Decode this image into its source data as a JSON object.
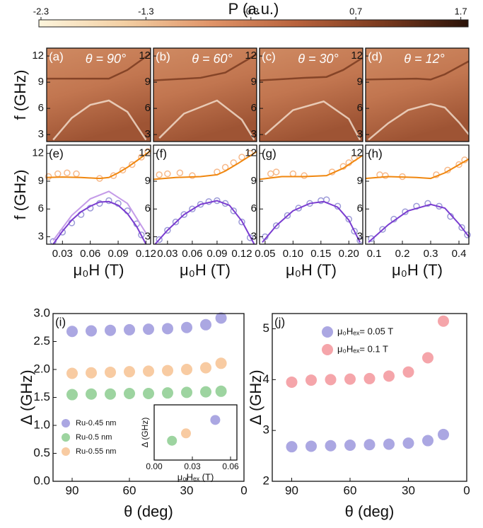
{
  "chart_data": [
    {
      "type": "colorbar",
      "title": "P (a.u.)",
      "clim": [
        -2.32,
        1.77
      ],
      "ticks": [
        -2.3,
        -1.3,
        -0.3,
        0.7,
        1.7
      ],
      "colors": [
        "#fdf5dc",
        "#f3cfa3",
        "#e09468",
        "#b8623c",
        "#7a3a1e",
        "#2a1208"
      ]
    },
    {
      "type": "heatmap",
      "label": "(a)",
      "annotation": "θ = 90°",
      "ylabel": "f (GHz)",
      "xlim": [
        0.013,
        0.125
      ],
      "ylim": [
        2.2,
        12.9
      ],
      "yticks": [
        3,
        6,
        9,
        12
      ],
      "grid": false,
      "series": [
        {
          "color": "#fff3e6",
          "x": [
            0.02,
            0.04,
            0.06,
            0.08,
            0.1,
            0.12
          ],
          "values": [
            2.4,
            4.9,
            6.4,
            6.9,
            5.6,
            2.4
          ]
        },
        {
          "color": "#6b2e16",
          "x": [
            0.013,
            0.05,
            0.08,
            0.1,
            0.125
          ],
          "values": [
            9.4,
            9.4,
            9.4,
            10.4,
            12.3
          ]
        }
      ]
    },
    {
      "type": "heatmap",
      "label": "(b)",
      "annotation": "θ = 60°",
      "xlim": [
        0.013,
        0.138
      ],
      "ylim": [
        2.2,
        12.9
      ],
      "yticks": [
        3,
        6,
        9,
        12
      ],
      "grid": false,
      "series": [
        {
          "color": "#fff3e6",
          "x": [
            0.02,
            0.05,
            0.09,
            0.12,
            0.135
          ],
          "values": [
            2.6,
            5.4,
            6.9,
            4.7,
            2.4
          ]
        },
        {
          "color": "#6b2e16",
          "x": [
            0.013,
            0.07,
            0.1,
            0.138
          ],
          "values": [
            9.2,
            9.5,
            10.1,
            12.2
          ]
        }
      ]
    },
    {
      "type": "heatmap",
      "label": "(c)",
      "annotation": "θ = 30°",
      "xlim": [
        0.04,
        0.225
      ],
      "ylim": [
        2.2,
        12.9
      ],
      "yticks": [
        3,
        6,
        9,
        12
      ],
      "grid": false,
      "series": [
        {
          "color": "#fff3e6",
          "x": [
            0.05,
            0.1,
            0.155,
            0.2,
            0.22
          ],
          "values": [
            3.0,
            5.8,
            6.8,
            4.8,
            2.4
          ]
        },
        {
          "color": "#6b2e16",
          "x": [
            0.04,
            0.12,
            0.16,
            0.19,
            0.225
          ],
          "values": [
            9.2,
            9.5,
            9.6,
            10.4,
            11.8
          ]
        }
      ]
    },
    {
      "type": "heatmap",
      "label": "(d)",
      "annotation": "θ = 12°",
      "xlim": [
        0.07,
        0.435
      ],
      "ylim": [
        2.2,
        12.9
      ],
      "yticks": [
        3,
        6,
        9,
        12
      ],
      "grid": false,
      "series": [
        {
          "color": "#fff3e6",
          "x": [
            0.08,
            0.15,
            0.22,
            0.3,
            0.35,
            0.4,
            0.435
          ],
          "values": [
            2.4,
            4.3,
            5.8,
            6.5,
            6.1,
            4.4,
            3.0
          ]
        },
        {
          "color": "#6b2e16",
          "x": [
            0.07,
            0.25,
            0.3,
            0.35,
            0.435
          ],
          "values": [
            9.3,
            9.4,
            9.3,
            9.9,
            11.4
          ]
        }
      ]
    },
    {
      "type": "scatter",
      "label": "(e)",
      "ylabel": "f (GHz)",
      "xlabel": "μ₀H (T)",
      "xlim": [
        0.013,
        0.125
      ],
      "xticks": [
        0.03,
        0.06,
        0.09,
        0.12
      ],
      "ylim": [
        2.2,
        12.9
      ],
      "yticks": [
        3,
        6,
        9,
        12
      ],
      "series": [
        {
          "marker": "open-circle",
          "color": "#f7b98a",
          "x": [
            0.015,
            0.025,
            0.035,
            0.045,
            0.07,
            0.085,
            0.095,
            0.105,
            0.115,
            0.122
          ],
          "values": [
            9.5,
            9.8,
            9.9,
            9.8,
            9.3,
            9.6,
            10.2,
            10.8,
            11.6,
            12.2
          ]
        },
        {
          "marker": "open-circle",
          "color": "#9c9ad8",
          "x": [
            0.02,
            0.03,
            0.04,
            0.05,
            0.06,
            0.07,
            0.08,
            0.09,
            0.1,
            0.11,
            0.115
          ],
          "values": [
            2.5,
            3.5,
            4.5,
            5.4,
            6.1,
            6.6,
            6.9,
            6.6,
            5.8,
            4.4,
            3.2
          ]
        },
        {
          "marker": "line",
          "color": "#f0870f",
          "x": [
            0.013,
            0.03,
            0.05,
            0.07,
            0.08,
            0.09,
            0.1,
            0.11,
            0.125
          ],
          "values": [
            9.4,
            9.45,
            9.4,
            9.3,
            9.4,
            9.9,
            10.5,
            11.2,
            12.3
          ]
        },
        {
          "marker": "line",
          "color": "#c49be8",
          "x": [
            0.02,
            0.04,
            0.06,
            0.08,
            0.1,
            0.12
          ],
          "values": [
            2.6,
            5.3,
            7.1,
            7.9,
            6.6,
            3.4
          ]
        },
        {
          "marker": "line",
          "color": "#7a3dd0",
          "x": [
            0.02,
            0.03,
            0.04,
            0.05,
            0.06,
            0.07,
            0.08,
            0.09,
            0.1,
            0.11,
            0.12
          ],
          "values": [
            2.2,
            3.6,
            4.8,
            5.7,
            6.3,
            6.75,
            6.8,
            6.4,
            5.5,
            4.1,
            2.2
          ]
        }
      ]
    },
    {
      "type": "scatter",
      "label": "(f)",
      "xlabel": "μ₀H (T)",
      "xlim": [
        0.013,
        0.138
      ],
      "xticks": [
        0.03,
        0.06,
        0.09,
        0.12
      ],
      "ylim": [
        2.2,
        12.9
      ],
      "yticks": [
        3,
        6,
        9,
        12
      ],
      "series": [
        {
          "marker": "open-circle",
          "color": "#f7b98a",
          "x": [
            0.02,
            0.03,
            0.045,
            0.06,
            0.09,
            0.1,
            0.11,
            0.12,
            0.13
          ],
          "values": [
            9.7,
            9.8,
            9.9,
            9.6,
            10.0,
            10.5,
            11.0,
            11.6,
            12.0
          ]
        },
        {
          "marker": "open-circle",
          "color": "#9c9ad8",
          "x": [
            0.02,
            0.03,
            0.04,
            0.05,
            0.06,
            0.07,
            0.08,
            0.09,
            0.1,
            0.11,
            0.12,
            0.13
          ],
          "values": [
            2.7,
            3.7,
            4.6,
            5.4,
            6.0,
            6.5,
            6.8,
            6.9,
            6.6,
            5.8,
            4.6,
            2.9
          ]
        },
        {
          "marker": "line",
          "color": "#f0870f",
          "x": [
            0.013,
            0.04,
            0.07,
            0.09,
            0.1,
            0.115,
            0.138
          ],
          "values": [
            9.2,
            9.4,
            9.5,
            9.7,
            10.1,
            10.9,
            12.2
          ]
        },
        {
          "marker": "line",
          "color": "#7a3dd0",
          "x": [
            0.015,
            0.03,
            0.05,
            0.07,
            0.09,
            0.105,
            0.12,
            0.135
          ],
          "values": [
            2.2,
            3.7,
            5.4,
            6.5,
            6.9,
            6.4,
            4.7,
            2.2
          ]
        }
      ]
    },
    {
      "type": "scatter",
      "label": "(g)",
      "xlabel": "μ₀H (T)",
      "xlim": [
        0.04,
        0.225
      ],
      "xticks": [
        0.05,
        {
          "value": 0.1,
          "label": "0.10"
        },
        0.15,
        {
          "value": 0.2,
          "label": "0.20"
        }
      ],
      "ylim": [
        2.2,
        12.9
      ],
      "yticks": [
        3,
        6,
        9,
        12
      ],
      "series": [
        {
          "marker": "open-circle",
          "color": "#f7b98a",
          "x": [
            0.06,
            0.07,
            0.1,
            0.12,
            0.17,
            0.19,
            0.2,
            0.21
          ],
          "values": [
            9.8,
            10.0,
            9.8,
            9.6,
            10.0,
            10.6,
            11.0,
            11.5
          ]
        },
        {
          "marker": "open-circle",
          "color": "#9c9ad8",
          "x": [
            0.05,
            0.07,
            0.09,
            0.11,
            0.13,
            0.15,
            0.16,
            0.18,
            0.2,
            0.21,
            0.22
          ],
          "values": [
            3.0,
            4.2,
            5.3,
            6.1,
            6.6,
            6.9,
            7.0,
            6.3,
            4.9,
            3.6,
            2.6
          ]
        },
        {
          "marker": "line",
          "color": "#f0870f",
          "x": [
            0.04,
            0.08,
            0.12,
            0.16,
            0.19,
            0.225
          ],
          "values": [
            9.2,
            9.5,
            9.5,
            9.6,
            10.4,
            11.8
          ]
        },
        {
          "marker": "line",
          "color": "#7a3dd0",
          "x": [
            0.045,
            0.07,
            0.1,
            0.13,
            0.155,
            0.18,
            0.2,
            0.22
          ],
          "values": [
            2.4,
            4.2,
            5.8,
            6.6,
            6.8,
            6.2,
            4.8,
            2.4
          ]
        }
      ]
    },
    {
      "type": "scatter",
      "label": "(h)",
      "xlabel": "μ₀H (T)",
      "xlim": [
        0.07,
        0.435
      ],
      "xticks": [
        0.1,
        0.2,
        0.3,
        0.4
      ],
      "ylim": [
        2.2,
        12.9
      ],
      "yticks": [
        3,
        6,
        9,
        12
      ],
      "series": [
        {
          "marker": "open-circle",
          "color": "#f7b98a",
          "x": [
            0.12,
            0.14,
            0.2,
            0.32,
            0.36,
            0.4,
            0.42
          ],
          "values": [
            9.7,
            9.6,
            9.5,
            9.7,
            10.2,
            10.8,
            11.3
          ]
        },
        {
          "marker": "open-circle",
          "color": "#9c9ad8",
          "x": [
            0.09,
            0.13,
            0.17,
            0.21,
            0.25,
            0.29,
            0.33,
            0.37,
            0.41,
            0.43
          ],
          "values": [
            2.8,
            3.8,
            4.9,
            5.7,
            6.3,
            6.6,
            6.3,
            5.2,
            4.0,
            3.2
          ]
        },
        {
          "marker": "line",
          "color": "#f0870f",
          "x": [
            0.07,
            0.15,
            0.25,
            0.3,
            0.35,
            0.435
          ],
          "values": [
            9.3,
            9.5,
            9.4,
            9.3,
            9.9,
            11.4
          ]
        },
        {
          "marker": "line",
          "color": "#7a3dd0",
          "x": [
            0.08,
            0.15,
            0.22,
            0.3,
            0.35,
            0.4,
            0.435
          ],
          "values": [
            2.4,
            4.3,
            5.8,
            6.5,
            6.1,
            4.4,
            3.0
          ]
        }
      ]
    },
    {
      "type": "scatter",
      "label": "(i)",
      "xlabel": "θ (deg)",
      "ylabel": "Δ (GHz)",
      "xlim": [
        100,
        0
      ],
      "xticks": [
        90,
        60,
        30,
        0
      ],
      "ylim": [
        0,
        3.0
      ],
      "yticks": [
        {
          "value": 0,
          "label": "0.0"
        },
        0.5,
        {
          "value": 1,
          "label": "1.0"
        },
        1.5,
        {
          "value": 2,
          "label": "2.0"
        },
        2.5,
        {
          "value": 3,
          "label": "3.0"
        }
      ],
      "legend": "lower-left",
      "series": [
        {
          "name": "Ru-0.45 nm",
          "marker": "dot",
          "color": "#aba7e2",
          "x": [
            90,
            80,
            70,
            60,
            50,
            40,
            30,
            20,
            12
          ],
          "values": [
            2.68,
            2.69,
            2.7,
            2.71,
            2.72,
            2.73,
            2.75,
            2.8,
            2.92
          ]
        },
        {
          "name": "Ru-0.5 nm",
          "marker": "dot",
          "color": "#9dd4a0",
          "x": [
            90,
            80,
            70,
            60,
            50,
            40,
            30,
            20,
            12
          ],
          "values": [
            1.55,
            1.56,
            1.56,
            1.57,
            1.57,
            1.58,
            1.59,
            1.6,
            1.61
          ]
        },
        {
          "name": "Ru-0.55 nm",
          "marker": "dot",
          "color": "#f8cba2",
          "x": [
            90,
            80,
            70,
            60,
            50,
            40,
            30,
            20,
            12
          ],
          "values": [
            1.93,
            1.94,
            1.95,
            1.96,
            1.97,
            1.98,
            2.0,
            2.03,
            2.11
          ]
        }
      ]
    },
    {
      "type": "scatter",
      "ylabel": "Δ (GHz)",
      "xlabel": "μ₀Hₑₓ (T)",
      "xlim": [
        0,
        0.065
      ],
      "xticks": [
        {
          "value": 0,
          "label": "0.00"
        },
        0.03,
        0.06
      ],
      "ylim": [
        0.5,
        3.5
      ],
      "series": [
        {
          "marker": "dot",
          "color": "#9dd4a0",
          "x": [
            0.014
          ],
          "values": [
            1.55
          ]
        },
        {
          "marker": "dot",
          "color": "#f8cba2",
          "x": [
            0.025
          ],
          "values": [
            1.95
          ]
        },
        {
          "marker": "dot",
          "color": "#aba7e2",
          "x": [
            0.048
          ],
          "values": [
            2.68
          ]
        }
      ]
    },
    {
      "type": "scatter",
      "label": "(j)",
      "xlabel": "θ (deg)",
      "ylabel": "Δ (GHz)",
      "xlim": [
        100,
        0
      ],
      "xticks": [
        90,
        60,
        30,
        0
      ],
      "ylim": [
        2,
        5.3
      ],
      "yticks": [
        2,
        3,
        4,
        5
      ],
      "legend": "upper-left",
      "series": [
        {
          "name": "μ₀Hₑₓ= 0.05 T",
          "marker": "dot",
          "color": "#aba7e2",
          "x": [
            90,
            80,
            70,
            60,
            50,
            40,
            30,
            20,
            12
          ],
          "values": [
            2.68,
            2.69,
            2.7,
            2.71,
            2.72,
            2.73,
            2.75,
            2.8,
            2.92
          ]
        },
        {
          "name": "μ₀Hₑₓ= 0.1 T",
          "marker": "dot",
          "color": "#f5a5aa",
          "x": [
            90,
            80,
            70,
            60,
            50,
            40,
            30,
            20,
            12
          ],
          "values": [
            3.95,
            3.99,
            4.0,
            4.01,
            4.02,
            4.07,
            4.15,
            4.43,
            5.15
          ]
        }
      ]
    }
  ]
}
